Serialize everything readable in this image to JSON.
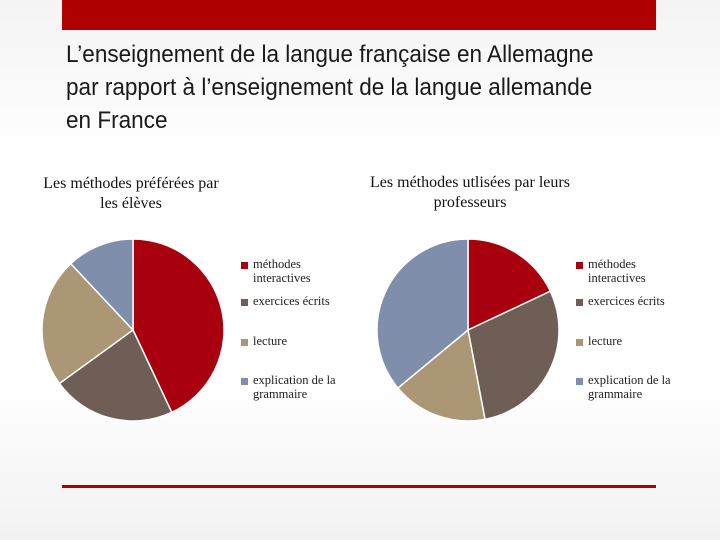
{
  "slide": {
    "title": "L’enseignement de la langue française en Allemagne par rapport à l’enseignement de la langue allemande en France"
  },
  "chart_data": [
    {
      "type": "pie",
      "title": "Les méthodes préférées par les élèves",
      "categories": [
        "méthodes interactives",
        "exercices écrits",
        "lecture",
        "explication de la grammaire"
      ],
      "values": [
        43,
        22,
        23,
        12
      ],
      "colors": [
        "#a8000e",
        "#6e5e56",
        "#ab9675",
        "#7f8eaa"
      ],
      "legend": "right",
      "start_angle": "top",
      "direction": "clockwise"
    },
    {
      "type": "pie",
      "title": "Les méthodes utlisées par leurs professeurs",
      "categories": [
        "méthodes interactives",
        "exercices écrits",
        "lecture",
        "explication de la grammaire"
      ],
      "values": [
        18,
        29,
        17,
        36
      ],
      "colors": [
        "#a8000e",
        "#6e5e56",
        "#ab9675",
        "#7f8eaa"
      ],
      "legend": "right",
      "start_angle": "top",
      "direction": "clockwise"
    }
  ]
}
